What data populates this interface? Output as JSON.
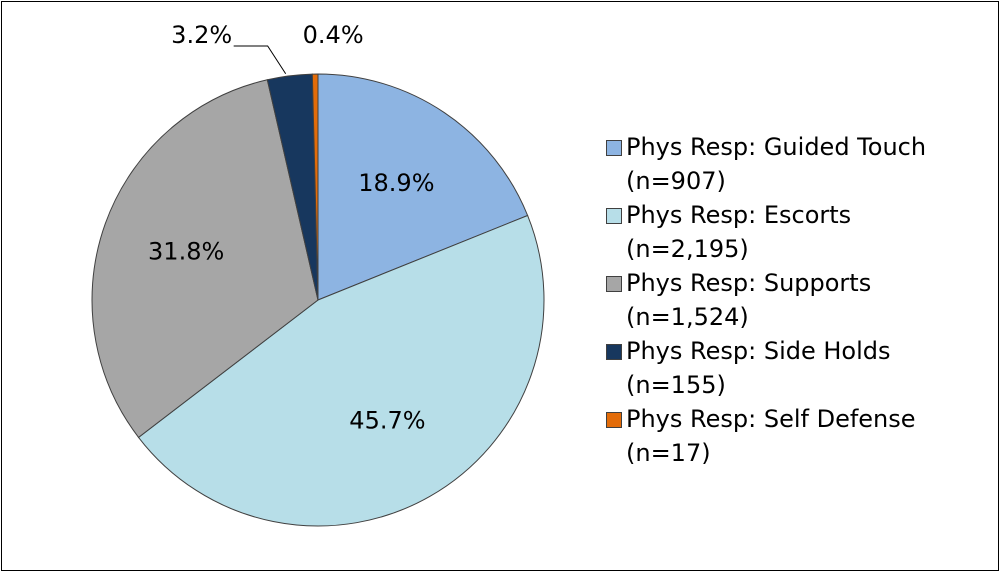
{
  "chart_data": {
    "type": "pie",
    "categories": [
      "Phys Resp: Guided Touch (n=907)",
      "Phys Resp: Escorts (n=2,195)",
      "Phys Resp: Supports (n=1,524)",
      "Phys Resp: Side Holds (n=155)",
      "Phys Resp: Self Defense (n=17)"
    ],
    "values": [
      18.9,
      45.7,
      31.8,
      3.2,
      0.4
    ],
    "value_labels": [
      "18.9%",
      "45.7%",
      "31.8%",
      "3.2%",
      "0.4%"
    ],
    "colors": [
      "#8DB4E2",
      "#B7DEE8",
      "#A6A6A6",
      "#17375E",
      "#E36C09"
    ],
    "legend": "right"
  }
}
